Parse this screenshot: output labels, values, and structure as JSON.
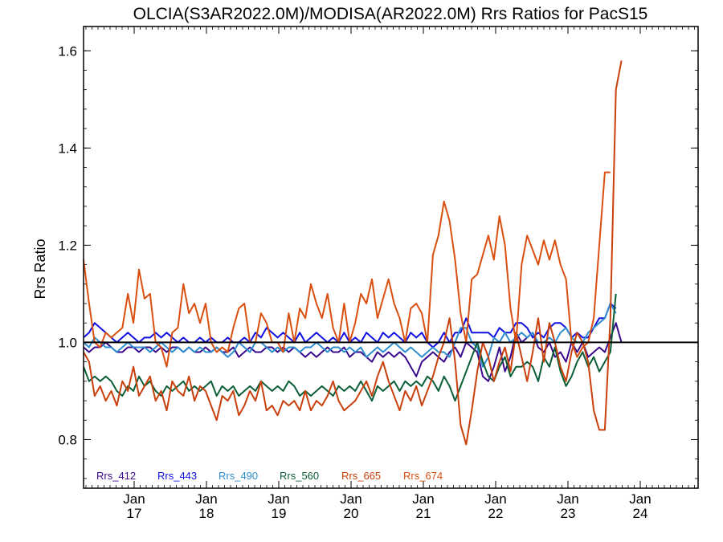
{
  "chart_data": {
    "type": "line",
    "title": "OLCIA(S3AR2022.0M)/MODISA(AR2022.0M)  Rrs Ratios for PacS15",
    "xlabel": "",
    "ylabel": "Rrs Ratio",
    "xlim": [
      2016.3,
      2024.8
    ],
    "ylim": [
      0.7,
      1.65
    ],
    "y_ticks": [
      0.8,
      1.0,
      1.2,
      1.4,
      1.6
    ],
    "y_tick_labels": [
      "0.8",
      "1.0",
      "1.2",
      "1.4",
      "1.6"
    ],
    "x_ticks": [
      {
        "x": 2017.0,
        "month": "Jan",
        "year": "17"
      },
      {
        "x": 2018.0,
        "month": "Jan",
        "year": "18"
      },
      {
        "x": 2019.0,
        "month": "Jan",
        "year": "19"
      },
      {
        "x": 2020.0,
        "month": "Jan",
        "year": "20"
      },
      {
        "x": 2021.0,
        "month": "Jan",
        "year": "21"
      },
      {
        "x": 2022.0,
        "month": "Jan",
        "year": "22"
      },
      {
        "x": 2023.0,
        "month": "Jan",
        "year": "23"
      },
      {
        "x": 2024.0,
        "month": "Jan",
        "year": "24"
      }
    ],
    "reference_line": 1.0,
    "grid": false,
    "legend_position": "bottom-left",
    "x_start": 2016.3,
    "x_step": 0.0767,
    "series": [
      {
        "name": "Rrs_412",
        "color": "#3a0a8c",
        "values": [
          0.99,
          0.98,
          0.99,
          0.99,
          1.0,
          0.99,
          0.98,
          0.98,
          0.99,
          0.99,
          0.98,
          0.99,
          0.99,
          0.98,
          0.99,
          0.98,
          0.99,
          0.99,
          0.98,
          0.99,
          0.98,
          0.98,
          0.99,
          0.98,
          0.99,
          0.98,
          0.98,
          0.99,
          0.97,
          0.98,
          0.99,
          0.98,
          0.98,
          0.99,
          0.99,
          0.98,
          0.99,
          0.98,
          0.99,
          0.98,
          0.97,
          0.98,
          0.97,
          0.98,
          0.99,
          0.98,
          0.98,
          0.99,
          0.97,
          0.98,
          0.98,
          0.97,
          0.96,
          0.98,
          0.97,
          0.98,
          0.97,
          0.98,
          0.97,
          0.95,
          0.93,
          0.96,
          0.97,
          0.98,
          0.97,
          0.96,
          0.98,
          0.99,
          0.97,
          1.0,
          0.99,
          0.98,
          0.93,
          0.92,
          0.95,
          0.99,
          0.94,
          0.97,
          1.02,
          1.0,
          1.01,
          1.02,
          0.99,
          0.98,
          1.0,
          0.97,
          0.98,
          0.96,
          1.0,
          0.98,
          1.0,
          0.97,
          0.98,
          0.99,
          0.98,
          1.01,
          1.04,
          1.0
        ]
      },
      {
        "name": "Rrs_443",
        "color": "#1010e0",
        "values": [
          1.01,
          1.02,
          1.04,
          1.03,
          1.02,
          1.01,
          1.0,
          1.01,
          1.02,
          1.01,
          1.0,
          1.01,
          1.01,
          1.02,
          1.01,
          1.02,
          1.01,
          1.0,
          1.01,
          1.0,
          1.0,
          1.01,
          1.0,
          1.01,
          1.0,
          1.0,
          1.01,
          1.0,
          1.0,
          1.01,
          1.0,
          1.02,
          1.01,
          1.03,
          1.02,
          1.01,
          1.02,
          1.01,
          1.0,
          1.02,
          1.0,
          1.01,
          1.02,
          1.01,
          1.0,
          1.01,
          1.0,
          1.02,
          1.0,
          1.01,
          1.0,
          1.02,
          1.01,
          1.0,
          1.02,
          1.01,
          1.02,
          1.01,
          1.0,
          1.02,
          1.01,
          1.02,
          1.0,
          0.99,
          1.0,
          1.02,
          1.0,
          1.02,
          1.02,
          1.05,
          1.02,
          1.02,
          1.02,
          1.02,
          1.01,
          1.03,
          1.02,
          1.02,
          1.04,
          1.04,
          1.03,
          1.01,
          1.02,
          1.01,
          1.03,
          1.04,
          1.04,
          1.03,
          1.01,
          1.02,
          1.01,
          1.01,
          1.03,
          1.05,
          1.05,
          1.08,
          1.07
        ]
      },
      {
        "name": "Rrs_490",
        "color": "#2f8ecf",
        "values": [
          1.0,
          0.99,
          1.01,
          1.0,
          0.99,
          0.99,
          0.98,
          0.99,
          1.0,
          0.99,
          0.99,
          0.99,
          0.98,
          0.99,
          1.0,
          0.99,
          0.98,
          0.99,
          0.98,
          0.99,
          0.98,
          0.99,
          0.98,
          0.98,
          0.99,
          0.98,
          0.97,
          0.98,
          1.0,
          0.99,
          0.98,
          1.0,
          1.0,
          0.99,
          0.98,
          0.99,
          0.98,
          0.99,
          0.99,
          0.98,
          0.99,
          0.99,
          1.0,
          0.99,
          0.98,
          0.99,
          0.99,
          0.98,
          0.99,
          0.98,
          0.99,
          0.97,
          0.98,
          0.99,
          0.98,
          0.99,
          1.0,
          0.99,
          0.98,
          0.99,
          0.98,
          0.97,
          0.98,
          0.99,
          0.98,
          0.98,
          0.97,
          1.0,
          1.03,
          1.03,
          1.0,
          0.99,
          0.95,
          0.97,
          1.01,
          1.0,
          1.02,
          1.0,
          1.01,
          1.02,
          1.01,
          1.02,
          1.0,
          1.0,
          1.01,
          1.0,
          1.02,
          1.03,
          1.01,
          1.0,
          1.0,
          1.02,
          1.03,
          1.04,
          1.05,
          1.08,
          1.06
        ]
      },
      {
        "name": "Rrs_560",
        "color": "#0b5e36",
        "values": [
          0.95,
          0.92,
          0.93,
          0.92,
          0.93,
          0.92,
          0.9,
          0.89,
          0.91,
          0.9,
          0.93,
          0.91,
          0.92,
          0.9,
          0.89,
          0.91,
          0.9,
          0.91,
          0.92,
          0.9,
          0.91,
          0.9,
          0.91,
          0.92,
          0.89,
          0.91,
          0.9,
          0.91,
          0.89,
          0.9,
          0.91,
          0.9,
          0.92,
          0.91,
          0.9,
          0.91,
          0.9,
          0.92,
          0.91,
          0.89,
          0.9,
          0.89,
          0.9,
          0.91,
          0.9,
          0.89,
          0.91,
          0.9,
          0.91,
          0.9,
          0.92,
          0.9,
          0.88,
          0.91,
          0.9,
          0.91,
          0.92,
          0.9,
          0.92,
          0.91,
          0.92,
          0.91,
          0.93,
          0.92,
          0.9,
          0.93,
          0.91,
          0.88,
          0.91,
          0.94,
          0.97,
          1.0,
          0.96,
          0.93,
          0.92,
          0.95,
          0.97,
          0.93,
          0.95,
          0.95,
          0.96,
          0.95,
          0.92,
          0.97,
          0.95,
          0.99,
          0.94,
          0.91,
          0.93,
          0.96,
          0.98,
          0.95,
          0.97,
          0.94,
          0.96,
          0.98,
          1.1
        ]
      },
      {
        "name": "Rrs_665",
        "color": "#c9400c",
        "values": [
          0.98,
          0.96,
          0.89,
          0.91,
          0.88,
          0.9,
          0.87,
          0.92,
          0.9,
          0.95,
          0.89,
          0.91,
          0.93,
          0.88,
          0.9,
          0.86,
          0.92,
          0.9,
          0.89,
          0.93,
          0.88,
          0.91,
          0.9,
          0.87,
          0.84,
          0.89,
          0.88,
          0.9,
          0.85,
          0.87,
          0.9,
          0.88,
          0.92,
          0.86,
          0.87,
          0.85,
          0.88,
          0.87,
          0.88,
          0.86,
          0.9,
          0.86,
          0.88,
          0.87,
          0.89,
          0.92,
          0.88,
          0.86,
          0.87,
          0.88,
          0.9,
          0.92,
          0.89,
          0.93,
          0.96,
          0.92,
          0.89,
          0.86,
          0.9,
          0.88,
          0.91,
          0.87,
          0.9,
          0.93,
          0.97,
          1.0,
          1.05,
          0.96,
          0.83,
          0.79,
          0.86,
          0.94,
          1.0,
          0.97,
          0.92,
          0.96,
          0.99,
          0.94,
          1.02,
          0.97,
          0.92,
          0.98,
          1.05,
          0.96,
          1.04,
          1.0,
          0.95,
          0.92,
          0.98,
          1.02,
          1.0,
          0.96,
          0.86,
          0.82,
          0.82,
          1.05,
          1.52,
          1.58
        ]
      },
      {
        "name": "Rrs_674",
        "color": "#d94f10",
        "values": [
          1.17,
          1.08,
          1.0,
          0.99,
          1.02,
          1.01,
          1.02,
          1.03,
          1.1,
          1.04,
          1.15,
          1.09,
          1.1,
          1.0,
          0.99,
          0.95,
          1.02,
          1.03,
          1.12,
          1.06,
          1.08,
          1.04,
          1.08,
          1.0,
          0.98,
          0.99,
          0.98,
          1.03,
          1.07,
          1.08,
          1.0,
          1.0,
          1.06,
          1.04,
          1.0,
          1.0,
          0.98,
          1.06,
          1.0,
          1.07,
          1.05,
          1.12,
          1.08,
          1.05,
          1.1,
          1.03,
          1.0,
          1.08,
          1.0,
          1.04,
          1.1,
          1.08,
          1.13,
          1.05,
          1.09,
          1.13,
          1.08,
          1.05,
          1.0,
          1.07,
          1.08,
          1.06,
          1.0,
          1.18,
          1.22,
          1.29,
          1.25,
          1.17,
          1.06,
          1.0,
          1.13,
          1.14,
          1.18,
          1.22,
          1.17,
          1.26,
          1.2,
          1.07,
          1.0,
          1.16,
          1.22,
          1.19,
          1.16,
          1.21,
          1.17,
          1.21,
          1.16,
          1.13,
          1.0,
          0.97,
          0.99,
          1.0,
          1.05,
          1.2,
          1.35,
          1.35
        ]
      }
    ]
  }
}
